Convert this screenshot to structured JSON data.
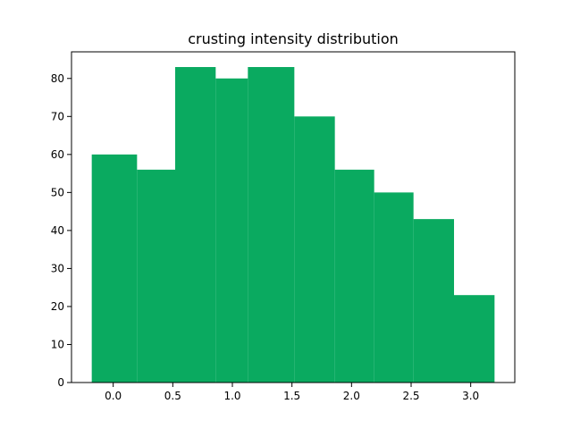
{
  "chart_data": {
    "type": "bar",
    "title": "crusting intensity distribution",
    "xlabel": "",
    "ylabel": "",
    "bin_edges": [
      -0.18,
      0.2,
      0.52,
      0.86,
      1.13,
      1.52,
      1.86,
      2.19,
      2.52,
      2.86,
      3.2
    ],
    "values": [
      60,
      56,
      83,
      80,
      83,
      70,
      56,
      50,
      43,
      23
    ],
    "xlim": [
      -0.35,
      3.37
    ],
    "ylim": [
      0,
      87
    ],
    "xticks": [
      0.0,
      0.5,
      1.0,
      1.5,
      2.0,
      2.5,
      3.0
    ],
    "xtick_labels": [
      "0.0",
      "0.5",
      "1.0",
      "1.5",
      "2.0",
      "2.5",
      "3.0"
    ],
    "yticks": [
      0,
      10,
      20,
      30,
      40,
      50,
      60,
      70,
      80
    ],
    "ytick_labels": [
      "0",
      "10",
      "20",
      "30",
      "40",
      "50",
      "60",
      "70",
      "80"
    ],
    "bar_color": "#0aaa60",
    "grid": false
  }
}
